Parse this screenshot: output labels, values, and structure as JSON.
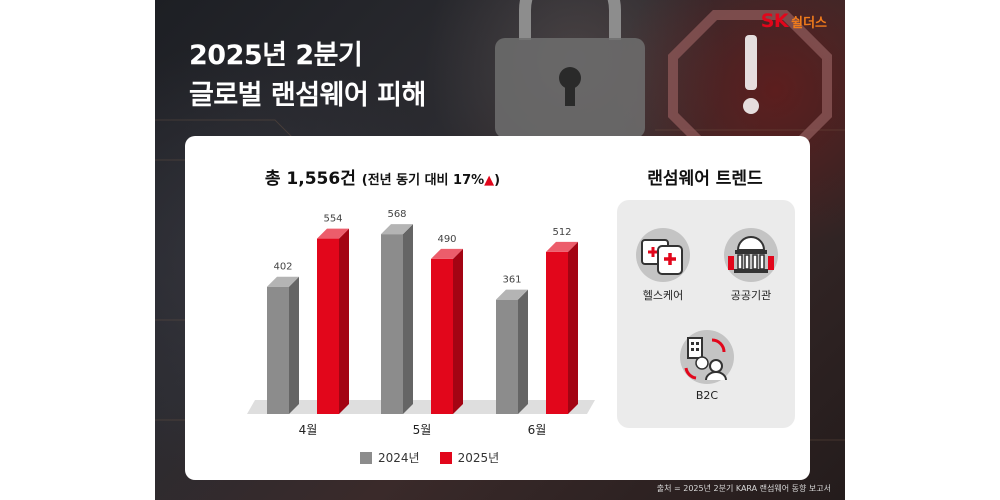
{
  "brand": {
    "sk": "SK",
    "sub": "쉴더스"
  },
  "headline": {
    "line1": "2025년 2분기",
    "line2": "글로벌 랜섬웨어 피해"
  },
  "chart_title": {
    "main": "총 1,556건",
    "sub": "(전년 동기 대비 17%",
    "arrow": "▲",
    "close": ")"
  },
  "chart_data": {
    "type": "bar",
    "categories": [
      "4월",
      "5월",
      "6월"
    ],
    "series": [
      {
        "name": "2024년",
        "values": [
          402,
          568,
          361
        ],
        "color": "#8c8c8c"
      },
      {
        "name": "2025년",
        "values": [
          554,
          490,
          512
        ],
        "color": "#e2061b"
      }
    ],
    "data_labels": true,
    "legend": "bottom-center",
    "grid": false
  },
  "trends": {
    "title": "랜섬웨어 트렌드",
    "items": [
      {
        "label": "헬스케어",
        "icon": "healthcare-icon"
      },
      {
        "label": "공공기관",
        "icon": "public-institution-icon"
      },
      {
        "label": "B2C",
        "icon": "b2c-icon"
      }
    ]
  },
  "source": "출처 = 2025년 2분기 KARA 랜섬웨어 동향 보고서"
}
